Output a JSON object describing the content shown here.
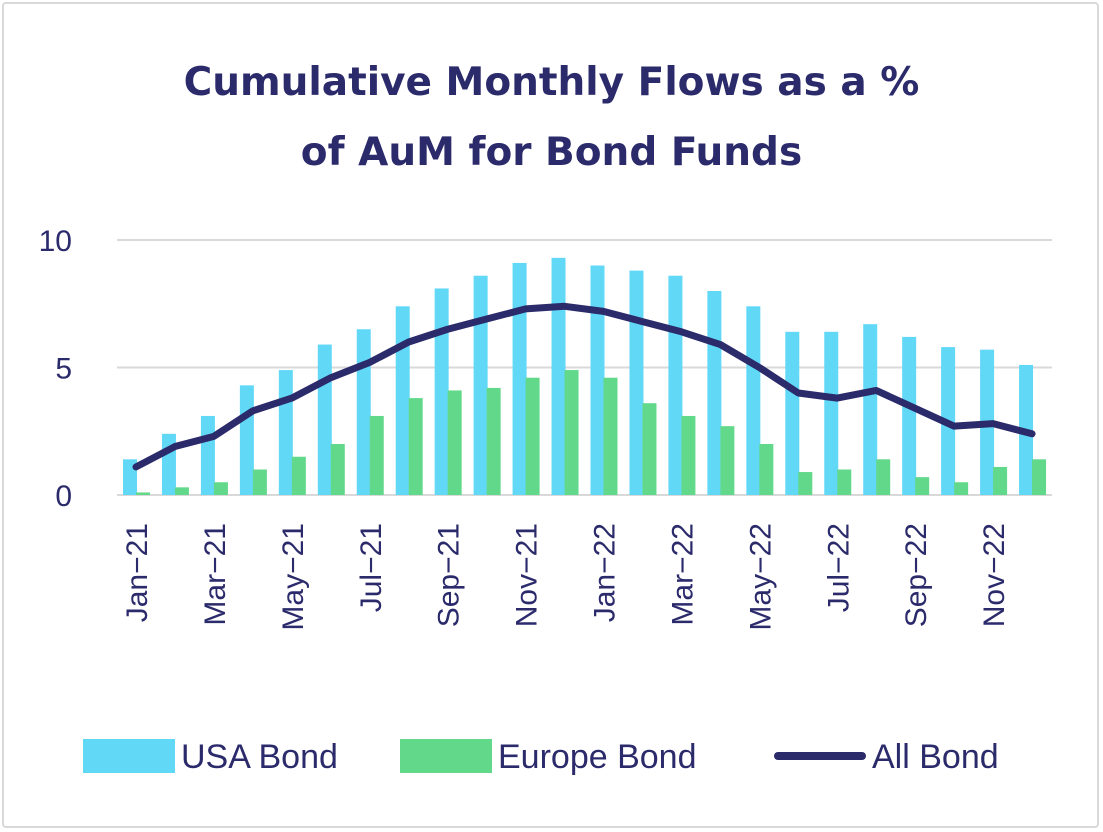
{
  "chart_data": {
    "type": "bar",
    "title": [
      "Cumulative Monthly Flows as a %",
      "of AuM for Bond Funds"
    ],
    "xlabel": "",
    "ylabel": "",
    "ylim": [
      0,
      10
    ],
    "yticks": [
      0,
      5,
      10
    ],
    "grid": true,
    "legend_position": "bottom",
    "categories": [
      "Jan-21",
      "Feb-21",
      "Mar-21",
      "Apr-21",
      "May-21",
      "Jun-21",
      "Jul-21",
      "Aug-21",
      "Sep-21",
      "Oct-21",
      "Nov-21",
      "Dec-21",
      "Jan-22",
      "Feb-22",
      "Mar-22",
      "Apr-22",
      "May-22",
      "Jun-22",
      "Jul-22",
      "Aug-22",
      "Sep-22",
      "Oct-22",
      "Nov-22",
      "Dec-22"
    ],
    "xtick_labels": [
      "Jan−21",
      "Mar−21",
      "May−21",
      "Jul−21",
      "Sep−21",
      "Nov−21",
      "Jan−22",
      "Mar−22",
      "May−22",
      "Jul−22",
      "Sep−22",
      "Nov−22"
    ],
    "series": [
      {
        "name": "USA Bond",
        "kind": "bar",
        "color": "#62d8f7",
        "values": [
          1.4,
          2.4,
          3.1,
          4.3,
          4.9,
          5.9,
          6.5,
          7.4,
          8.1,
          8.6,
          9.1,
          9.3,
          9.0,
          8.8,
          8.6,
          8.0,
          7.4,
          6.4,
          6.4,
          6.7,
          6.2,
          5.8,
          5.7,
          5.1
        ]
      },
      {
        "name": "Europe Bond",
        "kind": "bar",
        "color": "#62d88a",
        "values": [
          0.1,
          0.3,
          0.5,
          1.0,
          1.5,
          2.0,
          3.1,
          3.8,
          4.1,
          4.2,
          4.6,
          4.9,
          4.6,
          3.6,
          3.1,
          2.7,
          2.0,
          0.9,
          1.0,
          1.4,
          0.7,
          0.5,
          1.1,
          1.4
        ]
      },
      {
        "name": "All Bond",
        "kind": "line",
        "color": "#2b2a6b",
        "values": [
          1.1,
          1.9,
          2.3,
          3.3,
          3.8,
          4.6,
          5.2,
          6.0,
          6.5,
          6.9,
          7.3,
          7.4,
          7.2,
          6.8,
          6.4,
          5.9,
          5.0,
          4.0,
          3.8,
          4.1,
          3.4,
          2.7,
          2.8,
          2.4
        ]
      }
    ]
  }
}
